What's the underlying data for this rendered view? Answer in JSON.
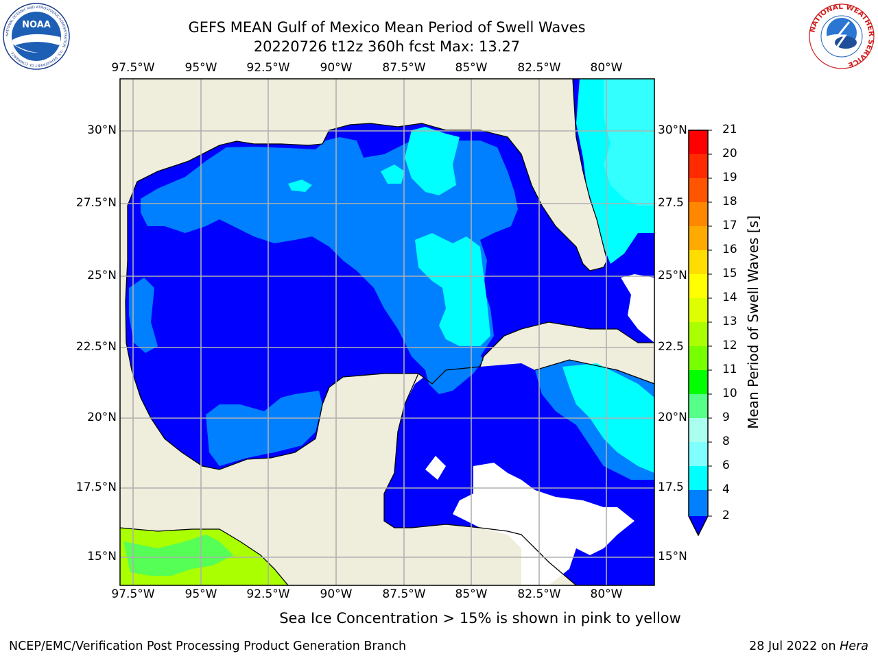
{
  "title_line1": "GEFS MEAN Gulf of Mexico Mean Period of Swell Waves",
  "title_line2": "20220726 t12z 360h fcst   Max: 13.27",
  "lon_labels": [
    "97.5°W",
    "95°W",
    "92.5°W",
    "90°W",
    "87.5°W",
    "85°W",
    "82.5°W",
    "80°W"
  ],
  "lat_labels": [
    "30°N",
    "27.5°N",
    "25°N",
    "22.5°N",
    "20°N",
    "17.5°N",
    "15°N"
  ],
  "lat_labels_right": [
    "30°N",
    "27.5",
    "25°N",
    "22.5",
    "20°N",
    "17.5",
    "15°N"
  ],
  "colorbar": {
    "title": "Mean Period of Swell Waves [s]",
    "levels": [
      "2",
      "4",
      "6",
      "8",
      "9",
      "10",
      "11",
      "12",
      "13",
      "14",
      "15",
      "16",
      "17",
      "18",
      "19",
      "20",
      "21"
    ],
    "colors": [
      "#0080ff",
      "#00e0ff",
      "#33ffff",
      "#80ffff",
      "#aaffee",
      "#55ff88",
      "#22dd22",
      "#00ff00",
      "#77ff00",
      "#aaff00",
      "#ddff00",
      "#ffff00",
      "#ffdd00",
      "#ffaa00",
      "#ff8800",
      "#ff5500",
      "#ff2a00",
      "#ff0000"
    ],
    "under_color": "#0000ff"
  },
  "colors": {
    "land": "#efeddc",
    "band_0_2": "#0000ff",
    "band_2_4": "#0080ff",
    "band_4_6": "#00ffff",
    "band_6_8": "#33ffff",
    "band_high": "#aaff00",
    "grid": "#b0b0b0"
  },
  "ice_note": "Sea Ice Concentration > 15% is shown in pink to yellow",
  "footer_left": "NCEP/EMC/Verification Post Processing Product Generation Branch",
  "footer_date": "28 Jul 2022 on ",
  "footer_machine": "Hera",
  "logos": {
    "left": "NOAA",
    "left_ring": "NATIONAL OCEANIC AND ATMOSPHERIC ADMINISTRATION · U.S. DEPARTMENT OF COMMERCE",
    "right_ring": "NATIONAL WEATHER SERVICE"
  }
}
